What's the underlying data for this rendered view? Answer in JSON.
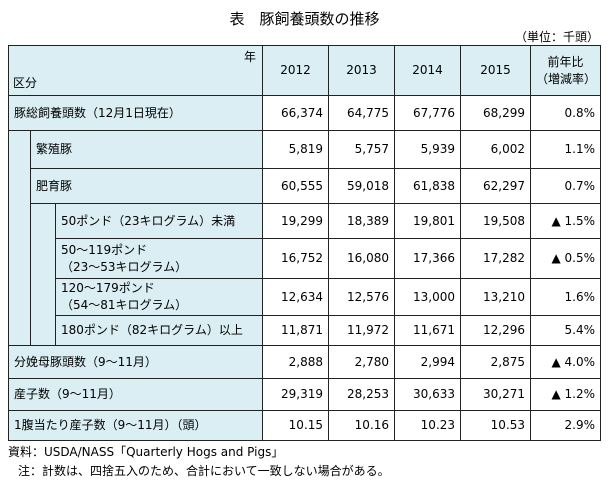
{
  "header": {
    "title": "表　豚飼養頭数の推移",
    "unit": "（単位：千頭）",
    "corner_top": "年",
    "corner_bottom": "区分",
    "columns": [
      "2012",
      "2013",
      "2014",
      "2015"
    ],
    "change": [
      "前年比",
      "（増減率）"
    ]
  },
  "table": {
    "rows": [
      [
        [
          "豚総飼養頭数（12月1日現在）"
        ],
        "66,374",
        "64,775",
        "67,776",
        "68,299",
        "0.8%"
      ],
      [
        [
          "繁殖豚"
        ],
        "5,819",
        "5,757",
        "5,939",
        "6,002",
        "1.1%"
      ],
      [
        [
          "肥育豚"
        ],
        "60,555",
        "59,018",
        "61,838",
        "62,297",
        "0.7%"
      ],
      [
        [
          "50ポンド（23キログラム）未満"
        ],
        "19,299",
        "18,389",
        "19,801",
        "19,508",
        "▲ 1.5%"
      ],
      [
        [
          "50～119ポンド",
          "（23～53キログラム）"
        ],
        "16,752",
        "16,080",
        "17,366",
        "17,282",
        "▲ 0.5%"
      ],
      [
        [
          "120～179ポンド",
          "（54～81キログラム）"
        ],
        "12,634",
        "12,576",
        "13,000",
        "13,210",
        "1.6%"
      ],
      [
        [
          "180ポンド（82キログラム）以上"
        ],
        "11,871",
        "11,972",
        "11,671",
        "12,296",
        "5.4%"
      ],
      [
        [
          "分娩母豚頭数（9～11月）"
        ],
        "2,888",
        "2,780",
        "2,994",
        "2,875",
        "▲ 4.0%"
      ],
      [
        [
          "産子数（9～11月）"
        ],
        "29,319",
        "28,253",
        "30,633",
        "30,271",
        "▲ 1.2%"
      ],
      [
        [
          "1腹当たり産子数（9～11月）（頭）"
        ],
        "10.15",
        "10.16",
        "10.23",
        "10.53",
        "2.9%"
      ]
    ]
  },
  "notes": [
    "資料：USDA/NASS「Quarterly Hogs and Pigs」",
    "注：計数は、四捨五入のため、合計において一致しない場合がある。"
  ]
}
